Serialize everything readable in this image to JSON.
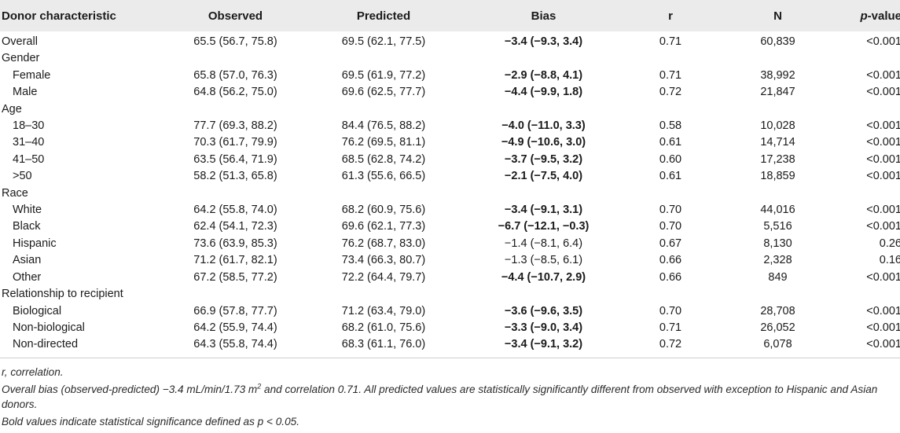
{
  "headers": {
    "characteristic": "Donor characteristic",
    "observed": "Observed",
    "predicted": "Predicted",
    "bias": "Bias",
    "r": "r",
    "n": "N",
    "p_prefix": "p",
    "p_suffix": "-value"
  },
  "rows": [
    {
      "label": "Overall",
      "observed": "65.5 (56.7, 75.8)",
      "predicted": "69.5 (62.1, 77.5)",
      "bias": "−3.4 (−9.3, 3.4)",
      "r": "0.71",
      "n": "60,839",
      "p": "<0.001"
    },
    {
      "label": "Gender"
    },
    {
      "label": "Female",
      "observed": "65.8 (57.0, 76.3)",
      "predicted": "69.5 (61.9, 77.2)",
      "bias": "−2.9 (−8.8, 4.1)",
      "r": "0.71",
      "n": "38,992",
      "p": "<0.001"
    },
    {
      "label": "Male",
      "observed": "64.8 (56.2, 75.0)",
      "predicted": "69.6 (62.5, 77.7)",
      "bias": "−4.4 (−9.9, 1.8)",
      "r": "0.72",
      "n": "21,847",
      "p": "<0.001"
    },
    {
      "label": "Age"
    },
    {
      "label": "18–30",
      "observed": "77.7 (69.3, 88.2)",
      "predicted": "84.4 (76.5, 88.2)",
      "bias": "−4.0 (−11.0, 3.3)",
      "r": "0.58",
      "n": "10,028",
      "p": "<0.001"
    },
    {
      "label": "31–40",
      "observed": "70.3 (61.7, 79.9)",
      "predicted": "76.2 (69.5, 81.1)",
      "bias": "−4.9 (−10.6, 3.0)",
      "r": "0.61",
      "n": "14,714",
      "p": "<0.001"
    },
    {
      "label": "41–50",
      "observed": "63.5 (56.4, 71.9)",
      "predicted": "68.5 (62.8, 74.2)",
      "bias": "−3.7 (−9.5, 3.2)",
      "r": "0.60",
      "n": "17,238",
      "p": "<0.001"
    },
    {
      "label": ">50",
      "observed": "58.2 (51.3, 65.8)",
      "predicted": "61.3 (55.6, 66.5)",
      "bias": "−2.1 (−7.5, 4.0)",
      "r": "0.61",
      "n": "18,859",
      "p": "<0.001"
    },
    {
      "label": "Race"
    },
    {
      "label": "White",
      "observed": "64.2 (55.8, 74.0)",
      "predicted": "68.2 (60.9, 75.6)",
      "bias": "−3.4 (−9.1, 3.1)",
      "r": "0.70",
      "n": "44,016",
      "p": "<0.001"
    },
    {
      "label": "Black",
      "observed": "62.4 (54.1, 72.3)",
      "predicted": "69.6 (62.1, 77.3)",
      "bias": "−6.7 (−12.1, −0.3)",
      "r": "0.70",
      "n": "5,516",
      "p": "<0.001"
    },
    {
      "label": "Hispanic",
      "observed": "73.6 (63.9, 85.3)",
      "predicted": "76.2 (68.7, 83.0)",
      "bias": "−1.4 (−8.1, 6.4)",
      "r": "0.67",
      "n": "8,130",
      "p": "0.26"
    },
    {
      "label": "Asian",
      "observed": "71.2 (61.7, 82.1)",
      "predicted": "73.4 (66.3, 80.7)",
      "bias": "−1.3 (−8.5, 6.1)",
      "r": "0.66",
      "n": "2,328",
      "p": "0.16"
    },
    {
      "label": "Other",
      "observed": "67.2 (58.5, 77.2)",
      "predicted": "72.2 (64.4, 79.7)",
      "bias": "−4.4 (−10.7, 2.9)",
      "r": "0.66",
      "n": "849",
      "p": "<0.001"
    },
    {
      "label": "Relationship to recipient"
    },
    {
      "label": "Biological",
      "observed": "66.9 (57.8, 77.7)",
      "predicted": "71.2 (63.4, 79.0)",
      "bias": "−3.6 (−9.6, 3.5)",
      "r": "0.70",
      "n": "28,708",
      "p": "<0.001"
    },
    {
      "label": "Non-biological",
      "observed": "64.2 (55.9, 74.4)",
      "predicted": "68.2 (61.0, 75.6)",
      "bias": "−3.3 (−9.0, 3.4)",
      "r": "0.71",
      "n": "26,052",
      "p": "<0.001"
    },
    {
      "label": "Non-directed",
      "observed": "64.3 (55.8, 74.4)",
      "predicted": "68.3 (61.1, 76.0)",
      "bias": "−3.4 (−9.1, 3.2)",
      "r": "0.72",
      "n": "6,078",
      "p": "<0.001"
    }
  ],
  "footnotes": {
    "abbrev": "r, correlation.",
    "overall_pre": "Overall bias (observed-predicted) −3.4 mL/min/1.73 m",
    "overall_sup": "2",
    "overall_post": " and correlation 0.71. All predicted values are statistically significantly different from observed with exception to Hispanic and Asian donors.",
    "bold_note": "Bold values indicate statistical significance defined as p < 0.05."
  }
}
